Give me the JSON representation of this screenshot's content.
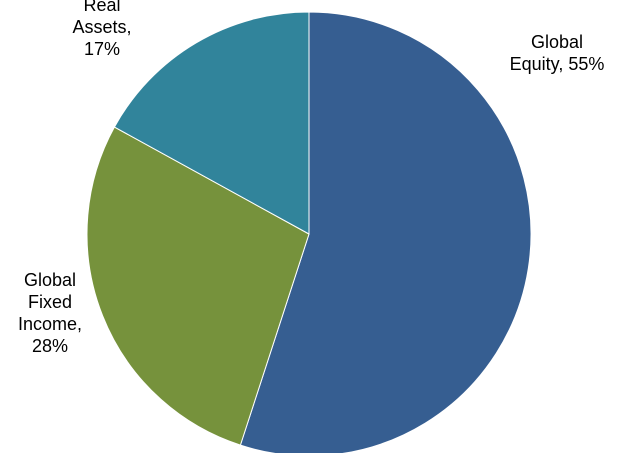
{
  "chart_data": {
    "type": "pie",
    "title": "",
    "slices": [
      {
        "label": "Global Equity",
        "value": 55,
        "display_lines": [
          "Global",
          "Equity, 55%"
        ],
        "color": "#365E91"
      },
      {
        "label": "Global Fixed Income",
        "value": 28,
        "display_lines": [
          "Global",
          "Fixed",
          "Income,",
          "28%"
        ],
        "color": "#76923C"
      },
      {
        "label": "Real Assets",
        "value": 17,
        "display_lines": [
          "Real",
          "Assets,",
          "17%"
        ],
        "color": "#31849B"
      }
    ],
    "start_angle_deg": 0,
    "direction": "clockwise",
    "legend": "none",
    "data_labels": "outside",
    "slice_border_color": "#ffffff"
  }
}
